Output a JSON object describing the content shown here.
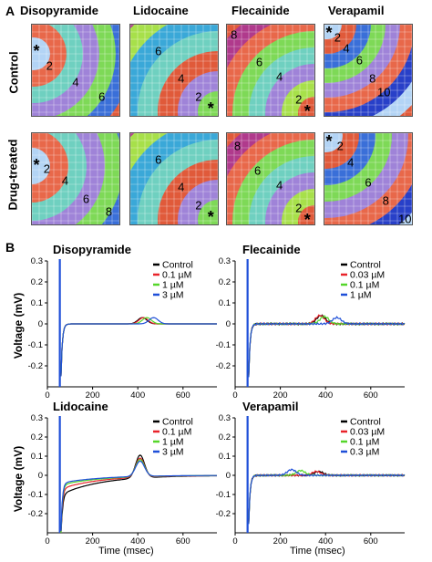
{
  "panel_a": {
    "letter": "A",
    "drugs": [
      "Disopyramide",
      "Lidocaine",
      "Flecainide",
      "Verapamil"
    ],
    "rows": [
      "Control",
      "Drug-treated"
    ],
    "colors": {
      "band_1": "#b3d4f5",
      "band_2": "#e8684a",
      "band_3": "#6fd0c0",
      "band_4": "#9f83d8",
      "band_5": "#7ed957",
      "band_6": "#3a6fd8",
      "band_7": "#e05a3a",
      "band_8": "#3aa8d8",
      "band_9": "#a7e04a",
      "band_10": "#b03a8c",
      "band_11": "#2840c8",
      "band_12": "#c23aa8"
    },
    "maps": [
      {
        "drug": "Disopyramide",
        "row": "Control",
        "labels": [
          "2",
          "4",
          "6"
        ],
        "star": "*"
      },
      {
        "drug": "Lidocaine",
        "row": "Control",
        "labels": [
          "6",
          "4",
          "2"
        ],
        "star": "*"
      },
      {
        "drug": "Flecainide",
        "row": "Control",
        "labels": [
          "8",
          "6",
          "4",
          "2"
        ],
        "star": "*"
      },
      {
        "drug": "Verapamil",
        "row": "Control",
        "labels": [
          "2",
          "4",
          "6",
          "8",
          "10"
        ],
        "star": "*"
      },
      {
        "drug": "Disopyramide",
        "row": "Drug-treated",
        "labels": [
          "2",
          "4",
          "6",
          "8"
        ],
        "star": "*"
      },
      {
        "drug": "Lidocaine",
        "row": "Drug-treated",
        "labels": [
          "6",
          "4",
          "2"
        ],
        "star": "*"
      },
      {
        "drug": "Flecainide",
        "row": "Drug-treated",
        "labels": [
          "8",
          "6",
          "4",
          "2"
        ],
        "star": "*"
      },
      {
        "drug": "Verapamil",
        "row": "Drug-treated",
        "labels": [
          "2",
          "4",
          "6",
          "8",
          "10"
        ],
        "star": "*"
      }
    ]
  },
  "panel_b": {
    "letter": "B",
    "ylabel": "Voltage (mV)",
    "xlabel": "Time (msec)"
  },
  "chart_data": [
    {
      "type": "line",
      "title": "Disopyramide",
      "xlabel": "",
      "ylabel": "Voltage (mV)",
      "xlim": [
        0,
        750
      ],
      "ylim": [
        -0.3,
        0.3
      ],
      "xticks": [
        "0",
        "200",
        "400",
        "600"
      ],
      "yticks": [
        "0.3",
        "0.2",
        "0.1",
        "0",
        "-0.1",
        "-0.2"
      ],
      "legend_position": "top-right",
      "series": [
        {
          "name": "Control",
          "color": "#000000",
          "peak_x": 420,
          "peak_y": 0.03
        },
        {
          "name": "0.1 µM",
          "color": "#e8232a",
          "peak_x": 425,
          "peak_y": 0.03
        },
        {
          "name": "1 µM",
          "color": "#55d62a",
          "peak_x": 440,
          "peak_y": 0.03
        },
        {
          "name": "3 µM",
          "color": "#1e4fd8",
          "peak_x": 470,
          "peak_y": 0.03
        }
      ]
    },
    {
      "type": "line",
      "title": "Flecainide",
      "xlabel": "",
      "ylabel": "",
      "xlim": [
        0,
        750
      ],
      "ylim": [
        -0.3,
        0.3
      ],
      "xticks": [
        "0",
        "200",
        "400",
        "600"
      ],
      "yticks": [
        "0.3",
        "0.2",
        "0.1",
        "0",
        "-0.1",
        "-0.2"
      ],
      "legend_position": "top-right",
      "series": [
        {
          "name": "Control",
          "color": "#000000",
          "peak_x": 380,
          "peak_y": 0.04
        },
        {
          "name": "0.03 µM",
          "color": "#e8232a",
          "peak_x": 375,
          "peak_y": 0.04
        },
        {
          "name": "0.1 µM",
          "color": "#55d62a",
          "peak_x": 395,
          "peak_y": 0.035
        },
        {
          "name": "1 µM",
          "color": "#1e4fd8",
          "peak_x": 450,
          "peak_y": 0.03
        }
      ]
    },
    {
      "type": "line",
      "title": "Lidocaine",
      "xlabel": "Time (msec)",
      "ylabel": "Voltage (mV)",
      "xlim": [
        0,
        750
      ],
      "ylim": [
        -0.3,
        0.3
      ],
      "xticks": [
        "0",
        "200",
        "400",
        "600"
      ],
      "yticks": [
        "0.3",
        "0.2",
        "0.1",
        "0",
        "-0.1",
        "-0.2"
      ],
      "legend_position": "top-right",
      "series": [
        {
          "name": "Control",
          "color": "#000000",
          "peak_x": 410,
          "peak_y": 0.12,
          "baseline": -0.1
        },
        {
          "name": "0.1 µM",
          "color": "#e8232a",
          "peak_x": 410,
          "peak_y": 0.1,
          "baseline": -0.07
        },
        {
          "name": "1 µM",
          "color": "#55d62a",
          "peak_x": 410,
          "peak_y": 0.09,
          "baseline": -0.05
        },
        {
          "name": "3 µM",
          "color": "#1e4fd8",
          "peak_x": 410,
          "peak_y": 0.08,
          "baseline": -0.04
        }
      ]
    },
    {
      "type": "line",
      "title": "Verapamil",
      "xlabel": "Time (msec)",
      "ylabel": "",
      "xlim": [
        0,
        750
      ],
      "ylim": [
        -0.3,
        0.3
      ],
      "xticks": [
        "0",
        "200",
        "400",
        "600"
      ],
      "yticks": [
        "0.3",
        "0.2",
        "0.1",
        "0",
        "-0.1",
        "-0.2"
      ],
      "legend_position": "top-right",
      "series": [
        {
          "name": "Control",
          "color": "#000000",
          "peak_x": 370,
          "peak_y": 0.02
        },
        {
          "name": "0.03 µM",
          "color": "#e8232a",
          "peak_x": 360,
          "peak_y": 0.02
        },
        {
          "name": "0.1 µM",
          "color": "#55d62a",
          "peak_x": 290,
          "peak_y": 0.025
        },
        {
          "name": "0.3 µM",
          "color": "#1e4fd8",
          "peak_x": 250,
          "peak_y": 0.03
        }
      ]
    }
  ]
}
